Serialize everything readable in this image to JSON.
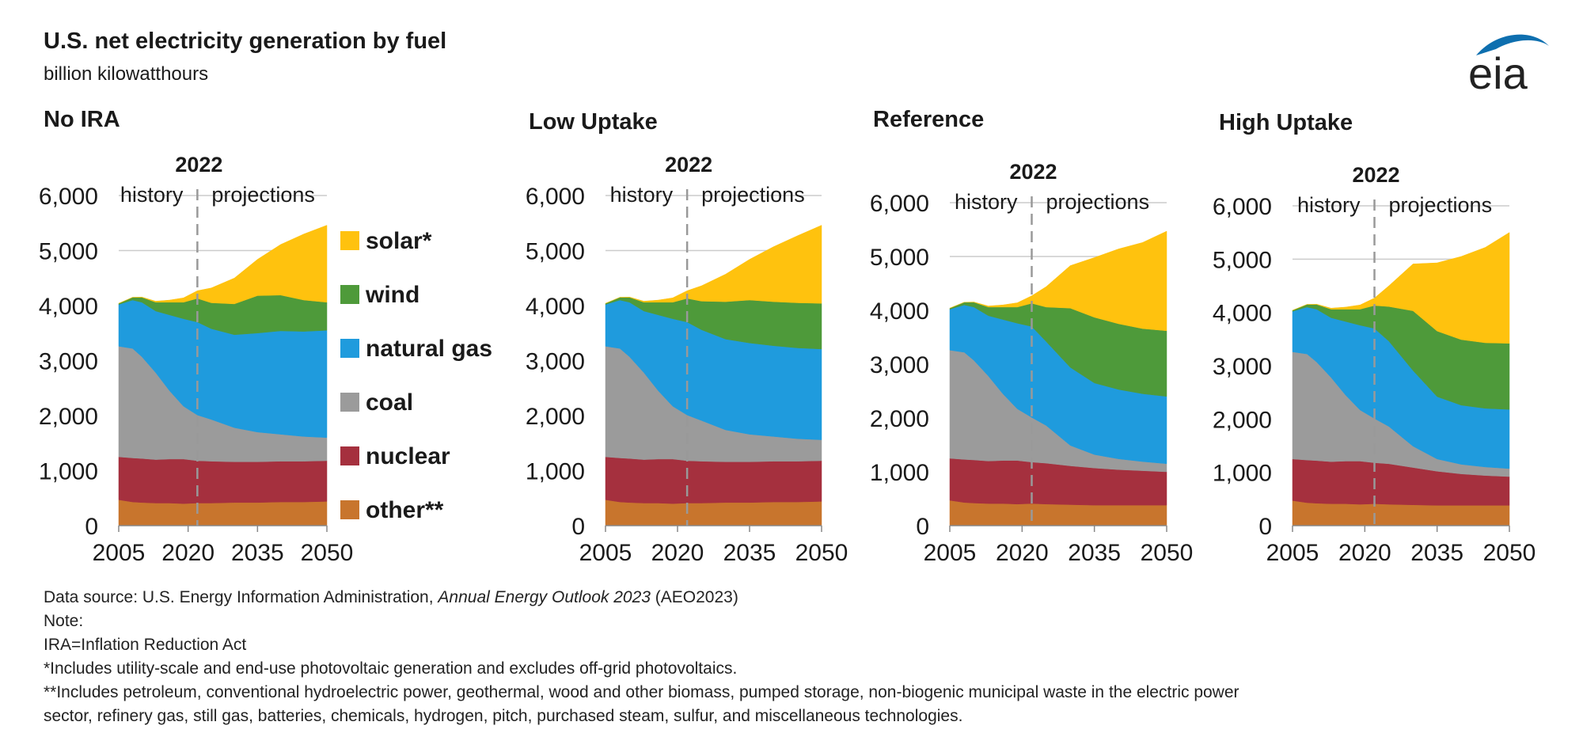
{
  "header": {
    "title": "U.S. net electricity generation by fuel",
    "subtitle": "billion kilowatthours",
    "logo_text": "eia"
  },
  "colors": {
    "solar": "#FFC20E",
    "wind": "#4E9A3A",
    "natural_gas": "#1F9BDD",
    "coal": "#9B9B9B",
    "nuclear": "#A5303E",
    "other": "#C8752D",
    "gridline": "#cccccc",
    "axis": "#888888",
    "divider": "#999999",
    "logo": "#0E6FAF"
  },
  "legend": [
    {
      "key": "solar",
      "label": "solar*"
    },
    {
      "key": "wind",
      "label": "wind"
    },
    {
      "key": "natural_gas",
      "label": "natural gas"
    },
    {
      "key": "coal",
      "label": "coal"
    },
    {
      "key": "nuclear",
      "label": "nuclear"
    },
    {
      "key": "other",
      "label": "other**"
    }
  ],
  "chart_data": [
    {
      "type": "area",
      "stacked": true,
      "title": "No IRA",
      "divider_year": 2022,
      "divider_label": "2022",
      "history_label": "history",
      "projections_label": "projections",
      "ylim": [
        0,
        6000
      ],
      "yticks": [
        0,
        1000,
        2000,
        3000,
        4000,
        5000,
        6000
      ],
      "ytick_labels": [
        "0",
        "1,000",
        "2,000",
        "3,000",
        "4,000",
        "5,000",
        "6,000"
      ],
      "xlim": [
        2005,
        2050
      ],
      "xticks": [
        2005,
        2020,
        2035,
        2050
      ],
      "xtick_labels": [
        "2005",
        "2020",
        "2035",
        "2050"
      ],
      "grid": "horizontal",
      "x": [
        2005,
        2008,
        2010,
        2013,
        2016,
        2019,
        2022,
        2025,
        2030,
        2035,
        2040,
        2045,
        2050
      ],
      "series": [
        {
          "key": "other",
          "values": [
            470,
            430,
            420,
            410,
            410,
            400,
            410,
            410,
            420,
            420,
            430,
            430,
            440
          ]
        },
        {
          "key": "nuclear",
          "values": [
            780,
            800,
            800,
            790,
            800,
            810,
            770,
            760,
            740,
            740,
            740,
            740,
            740
          ]
        },
        {
          "key": "coal",
          "values": [
            2010,
            1990,
            1850,
            1580,
            1240,
            960,
            830,
            760,
            620,
            540,
            490,
            450,
            420
          ]
        },
        {
          "key": "natural_gas",
          "values": [
            760,
            880,
            990,
            1120,
            1380,
            1590,
            1690,
            1650,
            1690,
            1800,
            1880,
            1910,
            1950
          ]
        },
        {
          "key": "wind",
          "values": [
            20,
            50,
            90,
            160,
            230,
            300,
            430,
            470,
            560,
            680,
            650,
            570,
            510
          ]
        },
        {
          "key": "solar",
          "values": [
            0,
            0,
            5,
            20,
            40,
            80,
            140,
            270,
            470,
            660,
            920,
            1200,
            1400
          ]
        }
      ]
    },
    {
      "type": "area",
      "stacked": true,
      "title": "Low Uptake",
      "divider_year": 2022,
      "divider_label": "2022",
      "history_label": "history",
      "projections_label": "projections",
      "ylim": [
        0,
        6000
      ],
      "yticks": [
        0,
        1000,
        2000,
        3000,
        4000,
        5000,
        6000
      ],
      "ytick_labels": [
        "0",
        "1,000",
        "2,000",
        "3,000",
        "4,000",
        "5,000",
        "6,000"
      ],
      "xlim": [
        2005,
        2050
      ],
      "xticks": [
        2005,
        2020,
        2035,
        2050
      ],
      "xtick_labels": [
        "2005",
        "2020",
        "2035",
        "2050"
      ],
      "grid": "horizontal",
      "x": [
        2005,
        2008,
        2010,
        2013,
        2016,
        2019,
        2022,
        2025,
        2030,
        2035,
        2040,
        2045,
        2050
      ],
      "series": [
        {
          "key": "other",
          "values": [
            470,
            430,
            420,
            410,
            410,
            400,
            410,
            410,
            420,
            420,
            430,
            430,
            440
          ]
        },
        {
          "key": "nuclear",
          "values": [
            780,
            800,
            800,
            790,
            800,
            810,
            770,
            760,
            740,
            740,
            740,
            740,
            740
          ]
        },
        {
          "key": "coal",
          "values": [
            2010,
            1990,
            1850,
            1580,
            1240,
            960,
            830,
            740,
            580,
            500,
            450,
            410,
            380
          ]
        },
        {
          "key": "natural_gas",
          "values": [
            760,
            880,
            990,
            1120,
            1380,
            1590,
            1690,
            1650,
            1650,
            1660,
            1650,
            1650,
            1650
          ]
        },
        {
          "key": "wind",
          "values": [
            20,
            50,
            90,
            160,
            230,
            300,
            430,
            520,
            680,
            780,
            800,
            820,
            830
          ]
        },
        {
          "key": "solar",
          "values": [
            0,
            0,
            5,
            20,
            40,
            80,
            140,
            280,
            500,
            740,
            1000,
            1220,
            1420
          ]
        }
      ]
    },
    {
      "type": "area",
      "stacked": true,
      "title": "Reference",
      "divider_year": 2022,
      "divider_label": "2022",
      "history_label": "history",
      "projections_label": "projections",
      "ylim": [
        0,
        6000
      ],
      "yticks": [
        0,
        1000,
        2000,
        3000,
        4000,
        5000,
        6000
      ],
      "ytick_labels": [
        "0",
        "1,000",
        "2,000",
        "3,000",
        "4,000",
        "5,000",
        "6,000"
      ],
      "xlim": [
        2005,
        2050
      ],
      "xticks": [
        2005,
        2020,
        2035,
        2050
      ],
      "xtick_labels": [
        "2005",
        "2020",
        "2035",
        "2050"
      ],
      "grid": "horizontal",
      "x": [
        2005,
        2008,
        2010,
        2013,
        2016,
        2019,
        2022,
        2025,
        2030,
        2035,
        2040,
        2045,
        2050
      ],
      "series": [
        {
          "key": "other",
          "values": [
            470,
            430,
            420,
            410,
            410,
            400,
            410,
            400,
            390,
            380,
            380,
            380,
            380
          ]
        },
        {
          "key": "nuclear",
          "values": [
            780,
            800,
            800,
            790,
            800,
            810,
            770,
            760,
            720,
            690,
            660,
            640,
            620
          ]
        },
        {
          "key": "coal",
          "values": [
            2010,
            1990,
            1850,
            1580,
            1240,
            960,
            830,
            700,
            380,
            250,
            200,
            170,
            150
          ]
        },
        {
          "key": "natural_gas",
          "values": [
            760,
            880,
            990,
            1120,
            1380,
            1590,
            1690,
            1560,
            1450,
            1330,
            1290,
            1260,
            1250
          ]
        },
        {
          "key": "wind",
          "values": [
            20,
            50,
            90,
            160,
            230,
            300,
            430,
            640,
            1100,
            1220,
            1220,
            1210,
            1220
          ]
        },
        {
          "key": "solar",
          "values": [
            0,
            0,
            5,
            20,
            40,
            80,
            140,
            380,
            790,
            1110,
            1390,
            1600,
            1850
          ]
        }
      ]
    },
    {
      "type": "area",
      "stacked": true,
      "title": "High Uptake",
      "divider_year": 2022,
      "divider_label": "2022",
      "history_label": "history",
      "projections_label": "projections",
      "ylim": [
        0,
        6000
      ],
      "yticks": [
        0,
        1000,
        2000,
        3000,
        4000,
        5000,
        6000
      ],
      "ytick_labels": [
        "0",
        "1,000",
        "2,000",
        "3,000",
        "4,000",
        "5,000",
        "6,000"
      ],
      "xlim": [
        2005,
        2050
      ],
      "xticks": [
        2005,
        2020,
        2035,
        2050
      ],
      "xtick_labels": [
        "2005",
        "2020",
        "2035",
        "2050"
      ],
      "grid": "horizontal",
      "x": [
        2005,
        2008,
        2010,
        2013,
        2016,
        2019,
        2022,
        2025,
        2030,
        2035,
        2040,
        2045,
        2050
      ],
      "series": [
        {
          "key": "other",
          "values": [
            470,
            430,
            420,
            410,
            410,
            400,
            410,
            400,
            390,
            380,
            380,
            380,
            380
          ]
        },
        {
          "key": "nuclear",
          "values": [
            780,
            800,
            800,
            790,
            800,
            810,
            770,
            760,
            700,
            640,
            590,
            560,
            540
          ]
        },
        {
          "key": "coal",
          "values": [
            2010,
            1990,
            1850,
            1580,
            1240,
            960,
            830,
            700,
            400,
            230,
            180,
            160,
            150
          ]
        },
        {
          "key": "natural_gas",
          "values": [
            760,
            880,
            990,
            1120,
            1380,
            1590,
            1690,
            1600,
            1420,
            1170,
            1110,
            1100,
            1110
          ]
        },
        {
          "key": "wind",
          "values": [
            20,
            50,
            90,
            160,
            230,
            300,
            430,
            650,
            1120,
            1230,
            1230,
            1230,
            1240
          ]
        },
        {
          "key": "solar",
          "values": [
            0,
            0,
            5,
            20,
            40,
            80,
            140,
            390,
            880,
            1280,
            1560,
            1790,
            2080
          ]
        }
      ]
    }
  ],
  "footnotes": {
    "source_prefix": "Data source: U.S. Energy Information Administration, ",
    "source_italic": "Annual Energy Outlook 2023",
    "source_suffix": " (AEO2023)",
    "note": "Note:",
    "ira": "IRA=Inflation Reduction Act",
    "solar_note": "*Includes utility-scale and end-use photovoltaic generation and excludes off-grid photovoltaics.",
    "other_note_line1": "**Includes petroleum, conventional hydroelectric power, geothermal, wood and other biomass, pumped storage, non-biogenic municipal waste in the electric power",
    "other_note_line2": "sector, refinery gas, still gas, batteries, chemicals, hydrogen, pitch, purchased steam, sulfur, and miscellaneous technologies."
  }
}
